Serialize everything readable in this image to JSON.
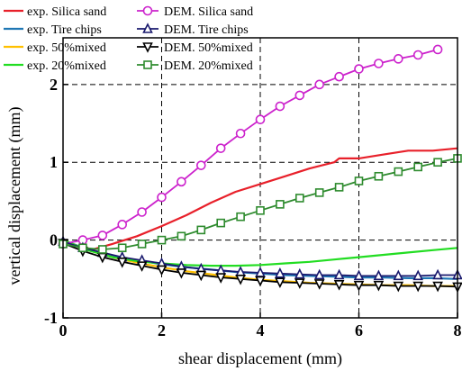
{
  "chart_data": {
    "type": "line",
    "title": "",
    "xlabel": "shear displacement (mm)",
    "ylabel": "vertical displacement (mm)",
    "xlim": [
      0,
      8
    ],
    "ylim": [
      -1,
      2.6
    ],
    "xticks": [
      0,
      2,
      4,
      6,
      8
    ],
    "yticks": [
      -1,
      0,
      1,
      2
    ],
    "xtick_labels": [
      "0",
      "2",
      "4",
      "6",
      "8"
    ],
    "ytick_labels": [
      "-1",
      "0",
      "1",
      "2"
    ],
    "grid": "dashed at ticks",
    "legend_position": "top-left",
    "series": [
      {
        "name": "exp. Silica sand",
        "kind": "line",
        "color": "#e8202a",
        "x": [
          0,
          0.3,
          0.6,
          1.0,
          1.5,
          2.0,
          2.5,
          3.0,
          3.5,
          4.0,
          4.5,
          5.0,
          5.5,
          5.6,
          6.0,
          6.5,
          7.0,
          7.5,
          8.0
        ],
        "y": [
          0.0,
          -0.08,
          -0.12,
          -0.05,
          0.05,
          0.18,
          0.32,
          0.48,
          0.62,
          0.72,
          0.82,
          0.92,
          1.0,
          1.05,
          1.05,
          1.1,
          1.15,
          1.15,
          1.18
        ]
      },
      {
        "name": "exp. Tire chips",
        "kind": "line",
        "color": "#1f77b4",
        "x": [
          0,
          0.5,
          1.0,
          1.5,
          2.0,
          2.5,
          3.0,
          3.5,
          4.0,
          4.5,
          5.0,
          5.5,
          6.0,
          6.5,
          7.0,
          7.5,
          8.0
        ],
        "y": [
          0.0,
          -0.12,
          -0.2,
          -0.26,
          -0.31,
          -0.35,
          -0.38,
          -0.41,
          -0.43,
          -0.45,
          -0.46,
          -0.47,
          -0.48,
          -0.48,
          -0.49,
          -0.49,
          -0.5
        ]
      },
      {
        "name": "exp. 50%mixed",
        "kind": "line",
        "color": "#ffc000",
        "x": [
          0,
          0.5,
          1.0,
          1.5,
          2.0,
          2.5,
          3.0,
          3.5,
          4.0,
          4.5,
          5.0,
          5.5,
          6.0,
          6.5,
          7.0,
          7.5,
          8.0
        ],
        "y": [
          0.0,
          -0.13,
          -0.22,
          -0.29,
          -0.35,
          -0.4,
          -0.44,
          -0.48,
          -0.51,
          -0.53,
          -0.55,
          -0.56,
          -0.57,
          -0.58,
          -0.58,
          -0.59,
          -0.59
        ]
      },
      {
        "name": "exp. 20%mixed",
        "kind": "line",
        "color": "#22dd22",
        "x": [
          0,
          0.5,
          1.0,
          1.5,
          2.0,
          2.5,
          3.0,
          3.5,
          4.0,
          4.5,
          5.0,
          5.5,
          6.0,
          6.5,
          7.0,
          7.5,
          8.0
        ],
        "y": [
          0.0,
          -0.13,
          -0.22,
          -0.27,
          -0.3,
          -0.32,
          -0.33,
          -0.33,
          -0.32,
          -0.3,
          -0.28,
          -0.25,
          -0.22,
          -0.19,
          -0.16,
          -0.13,
          -0.1
        ]
      },
      {
        "name": "DEM. Silica sand",
        "kind": "marker",
        "marker": "circle",
        "color": "#cc22cc",
        "x": [
          0,
          0.4,
          0.8,
          1.2,
          1.6,
          2.0,
          2.4,
          2.8,
          3.2,
          3.6,
          4.0,
          4.4,
          4.8,
          5.2,
          5.6,
          6.0,
          6.4,
          6.8,
          7.2,
          7.6
        ],
        "y": [
          -0.05,
          0.0,
          0.06,
          0.2,
          0.36,
          0.55,
          0.75,
          0.96,
          1.18,
          1.37,
          1.55,
          1.72,
          1.86,
          2.0,
          2.1,
          2.2,
          2.27,
          2.33,
          2.38,
          2.45
        ]
      },
      {
        "name": "DEM. Tire chips",
        "kind": "marker",
        "marker": "triangle-up",
        "color": "#1a1a6e",
        "x": [
          0,
          0.4,
          0.8,
          1.2,
          1.6,
          2.0,
          2.4,
          2.8,
          3.2,
          3.6,
          4.0,
          4.4,
          4.8,
          5.2,
          5.6,
          6.0,
          6.4,
          6.8,
          7.2,
          7.6,
          8.0
        ],
        "y": [
          -0.02,
          -0.1,
          -0.16,
          -0.22,
          -0.26,
          -0.3,
          -0.34,
          -0.37,
          -0.39,
          -0.41,
          -0.42,
          -0.43,
          -0.44,
          -0.45,
          -0.45,
          -0.46,
          -0.46,
          -0.46,
          -0.46,
          -0.45,
          -0.45
        ]
      },
      {
        "name": "DEM. 50%mixed",
        "kind": "marker",
        "marker": "triangle-down",
        "color": "#000000",
        "x": [
          0,
          0.4,
          0.8,
          1.2,
          1.6,
          2.0,
          2.4,
          2.8,
          3.2,
          3.6,
          4.0,
          4.4,
          4.8,
          5.2,
          5.6,
          6.0,
          6.4,
          6.8,
          7.2,
          7.6,
          8.0
        ],
        "y": [
          -0.04,
          -0.14,
          -0.22,
          -0.28,
          -0.33,
          -0.38,
          -0.42,
          -0.45,
          -0.48,
          -0.5,
          -0.52,
          -0.54,
          -0.55,
          -0.56,
          -0.57,
          -0.58,
          -0.58,
          -0.59,
          -0.59,
          -0.59,
          -0.6
        ]
      },
      {
        "name": "DEM. 20%mixed",
        "kind": "marker",
        "marker": "square",
        "color": "#2e8b2e",
        "x": [
          0,
          0.4,
          0.8,
          1.2,
          1.6,
          2.0,
          2.4,
          2.8,
          3.2,
          3.6,
          4.0,
          4.4,
          4.8,
          5.2,
          5.6,
          6.0,
          6.4,
          6.8,
          7.2,
          7.6,
          8.0
        ],
        "y": [
          -0.05,
          -0.1,
          -0.12,
          -0.1,
          -0.05,
          0.0,
          0.05,
          0.13,
          0.22,
          0.3,
          0.38,
          0.46,
          0.54,
          0.61,
          0.68,
          0.76,
          0.82,
          0.88,
          0.94,
          1.0,
          1.05
        ]
      }
    ],
    "legend": [
      {
        "label": "exp. Silica sand",
        "kind": "line",
        "color": "#e8202a"
      },
      {
        "label": "DEM. Silica sand",
        "kind": "marker",
        "marker": "circle",
        "color": "#cc22cc"
      },
      {
        "label": "exp. Tire chips",
        "kind": "line",
        "color": "#1f77b4"
      },
      {
        "label": "DEM. Tire chips",
        "kind": "marker",
        "marker": "triangle-up",
        "color": "#1a1a6e"
      },
      {
        "label": "exp. 50%mixed",
        "kind": "line",
        "color": "#ffc000"
      },
      {
        "label": "DEM. 50%mixed",
        "kind": "marker",
        "marker": "triangle-down",
        "color": "#000000"
      },
      {
        "label": "exp. 20%mixed",
        "kind": "line",
        "color": "#22dd22"
      },
      {
        "label": "DEM. 20%mixed",
        "kind": "marker",
        "marker": "square",
        "color": "#2e8b2e"
      }
    ]
  }
}
